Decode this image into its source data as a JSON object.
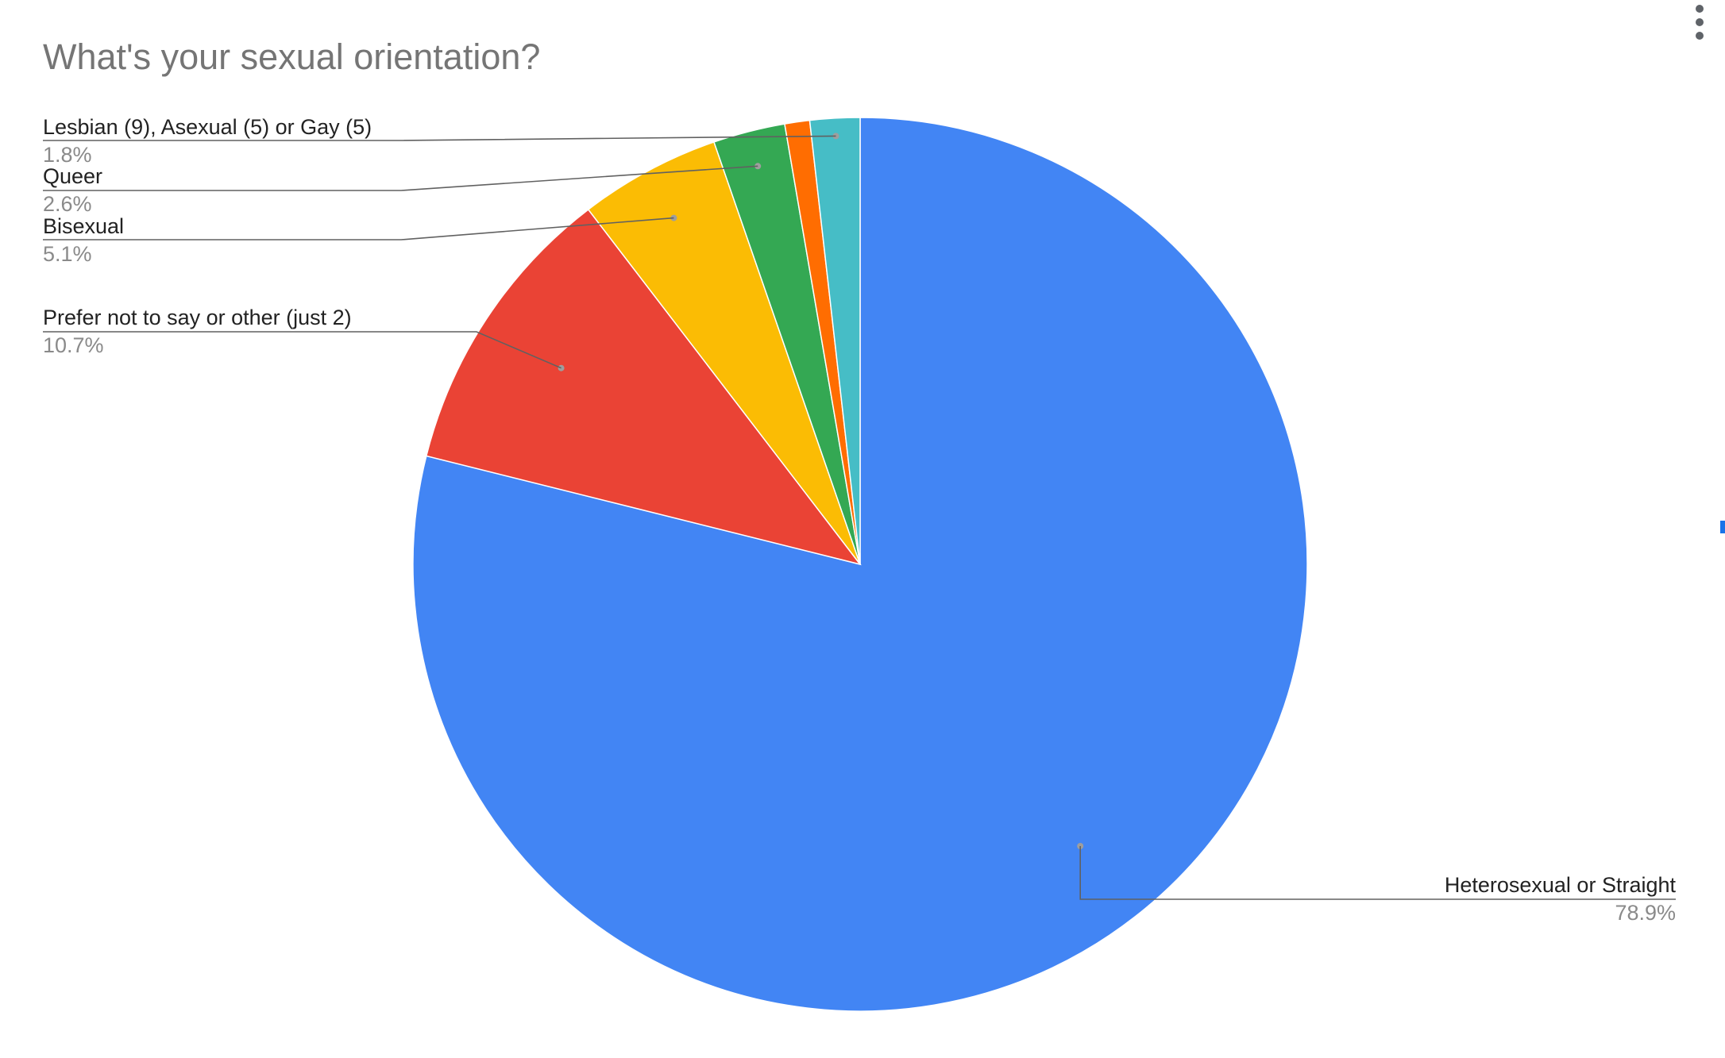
{
  "chart_data": {
    "type": "pie",
    "title": "What's your sexual orientation?",
    "slices": [
      {
        "label": "Heterosexual or Straight",
        "value": 78.9,
        "pct_label": "78.9%",
        "color": "#4285f4"
      },
      {
        "label": "Prefer not to say or other (just 2)",
        "value": 10.7,
        "pct_label": "10.7%",
        "color": "#ea4335"
      },
      {
        "label": "Bisexual",
        "value": 5.1,
        "pct_label": "5.1%",
        "color": "#fbbc04"
      },
      {
        "label": "Queer",
        "value": 2.6,
        "pct_label": "2.6%",
        "color": "#34a853"
      },
      {
        "label": "",
        "value": 0.9,
        "pct_label": "",
        "color": "#ff6d01"
      },
      {
        "label": "Lesbian (9), Asexual (5) or Gay (5)",
        "value": 1.8,
        "pct_label": "1.8%",
        "color": "#46bdc6"
      }
    ],
    "start": "top",
    "direction": "clockwise",
    "legend": "none"
  },
  "toolbar": {
    "menu_icon": "more-vert-icon"
  }
}
